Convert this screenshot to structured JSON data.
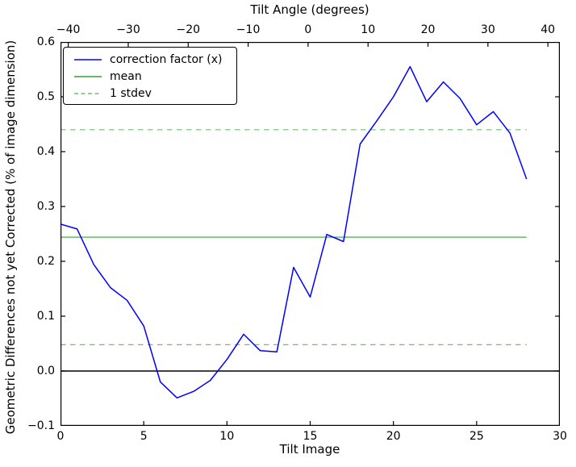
{
  "chart_data": {
    "type": "line",
    "title": "",
    "top_axis": {
      "label": "Tilt Angle (degrees)",
      "tick_labels": [
        "−40",
        "−30",
        "−20",
        "−10",
        "0",
        "10",
        "20",
        "30",
        "40"
      ],
      "tick_values": [
        -40,
        -30,
        -20,
        -10,
        0,
        10,
        20,
        30,
        40
      ],
      "xlim": [
        -41.3,
        42.0
      ]
    },
    "xlabel": "Tilt Image",
    "x_tick_labels": [
      "0",
      "5",
      "10",
      "15",
      "20",
      "25",
      "30"
    ],
    "x_tick_values": [
      0,
      5,
      10,
      15,
      20,
      25,
      30
    ],
    "xlim": [
      0,
      30
    ],
    "ylabel": "Geometric Differences not yet Corrected (% of image dimension)",
    "y_tick_labels": [
      "0.6",
      "0.5",
      "0.4",
      "0.3",
      "0.2",
      "0.1",
      "0.0",
      "−0.1"
    ],
    "y_tick_values": [
      0.6,
      0.5,
      0.4,
      0.3,
      0.2,
      0.1,
      0.0,
      -0.1
    ],
    "ylim": [
      -0.1,
      0.6
    ],
    "grid": false,
    "x": [
      0,
      1,
      2,
      3,
      4,
      5,
      6,
      7,
      8,
      9,
      10,
      11,
      12,
      13,
      14,
      15,
      16,
      17,
      18,
      19,
      20,
      21,
      22,
      23,
      24,
      25,
      26,
      27,
      28
    ],
    "series": [
      {
        "name": "correction factor (x)",
        "kind": "line",
        "color": "#0000ff",
        "style": "solid",
        "width": 1.5,
        "values": [
          0.268,
          0.259,
          0.194,
          0.152,
          0.129,
          0.082,
          -0.02,
          -0.049,
          -0.037,
          -0.017,
          0.021,
          0.067,
          0.037,
          0.035,
          0.189,
          0.135,
          0.249,
          0.236,
          0.414,
          0.456,
          0.5,
          0.555,
          0.491,
          0.527,
          0.497,
          0.449,
          0.473,
          0.434,
          0.35
        ]
      },
      {
        "name": "mean",
        "kind": "hline",
        "color": "#33a033",
        "style": "solid",
        "width": 1.2,
        "y": 0.244,
        "x_span": [
          0,
          28
        ]
      },
      {
        "name": "1 stdev (upper)",
        "kind": "hline",
        "color": "#6fc06f",
        "style": "dashed",
        "width": 1.2,
        "y": 0.44,
        "x_span": [
          0,
          28
        ]
      },
      {
        "name": "1 stdev (lower)",
        "kind": "hline",
        "color": "#6fc06f",
        "style": "dashed",
        "width": 1.2,
        "y": 0.048,
        "x_span": [
          0,
          28
        ]
      }
    ],
    "zero_line": {
      "y": 0.0,
      "color": "#000000",
      "width": 1.5
    },
    "legend": {
      "position": "upper left",
      "items": [
        {
          "label": "correction factor (x)",
          "color": "#0000ff",
          "dash": "solid"
        },
        {
          "label": "mean",
          "color": "#33a033",
          "dash": "solid"
        },
        {
          "label": "1 stdev",
          "color": "#6fc06f",
          "dash": "dashed"
        }
      ]
    }
  }
}
